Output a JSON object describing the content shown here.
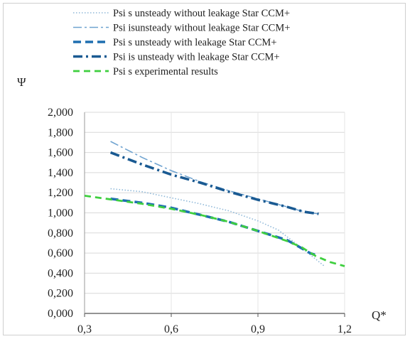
{
  "chart_data": {
    "type": "line",
    "title": "",
    "xlabel": "Q*",
    "ylabel": "Ψ",
    "xlim": [
      0.3,
      1.2
    ],
    "ylim": [
      0,
      2
    ],
    "x_ticks": [
      "0,3",
      "0,6",
      "0,9",
      "1,2"
    ],
    "y_ticks": [
      "0,000",
      "0,200",
      "0,400",
      "0,600",
      "0,800",
      "1,000",
      "1,200",
      "1,400",
      "1,600",
      "1,800",
      "2,000"
    ],
    "grid": "horizontal",
    "legend_position": "top",
    "series": [
      {
        "name": "Psi s unsteady without leakage Star CCM+",
        "color": "#8fb8d8",
        "style": "dotted",
        "points": [
          [
            0.39,
            1.24
          ],
          [
            0.5,
            1.21
          ],
          [
            0.6,
            1.15
          ],
          [
            0.7,
            1.09
          ],
          [
            0.8,
            1.02
          ],
          [
            0.9,
            0.92
          ],
          [
            0.97,
            0.83
          ],
          [
            1.02,
            0.72
          ],
          [
            1.06,
            0.63
          ],
          [
            1.1,
            0.54
          ],
          [
            1.13,
            0.47
          ]
        ]
      },
      {
        "name": "Psi isunsteady without leakage Star CCM+",
        "color": "#6fa3d0",
        "style": "dashdot-thin",
        "points": [
          [
            0.39,
            1.71
          ],
          [
            0.5,
            1.55
          ],
          [
            0.6,
            1.42
          ],
          [
            0.7,
            1.31
          ],
          [
            0.8,
            1.22
          ],
          [
            0.9,
            1.14
          ],
          [
            1.0,
            1.06
          ],
          [
            1.06,
            1.01
          ],
          [
            1.11,
            0.99
          ]
        ]
      },
      {
        "name": "Psi s unsteady with leakage Star CCM+",
        "color": "#1f6fb0",
        "style": "dashed-thick",
        "points": [
          [
            0.39,
            1.14
          ],
          [
            0.5,
            1.1
          ],
          [
            0.6,
            1.05
          ],
          [
            0.7,
            0.98
          ],
          [
            0.8,
            0.91
          ],
          [
            0.9,
            0.82
          ],
          [
            1.0,
            0.73
          ],
          [
            1.05,
            0.65
          ],
          [
            1.08,
            0.6
          ],
          [
            1.1,
            0.58
          ]
        ]
      },
      {
        "name": "Psi is unsteady with leakage Star CCM+",
        "color": "#1a5a92",
        "style": "dashdot-thick",
        "points": [
          [
            0.39,
            1.6
          ],
          [
            0.5,
            1.48
          ],
          [
            0.6,
            1.38
          ],
          [
            0.7,
            1.3
          ],
          [
            0.8,
            1.21
          ],
          [
            0.9,
            1.13
          ],
          [
            1.0,
            1.06
          ],
          [
            1.06,
            1.01
          ],
          [
            1.11,
            0.99
          ]
        ]
      },
      {
        "name": "Psi s experimental results",
        "color": "#3fcf3f",
        "style": "dashed",
        "points": [
          [
            0.3,
            1.17
          ],
          [
            0.4,
            1.13
          ],
          [
            0.5,
            1.09
          ],
          [
            0.6,
            1.04
          ],
          [
            0.7,
            0.98
          ],
          [
            0.8,
            0.91
          ],
          [
            0.9,
            0.82
          ],
          [
            1.0,
            0.72
          ],
          [
            1.05,
            0.66
          ],
          [
            1.1,
            0.57
          ],
          [
            1.15,
            0.51
          ],
          [
            1.2,
            0.47
          ]
        ]
      }
    ]
  }
}
